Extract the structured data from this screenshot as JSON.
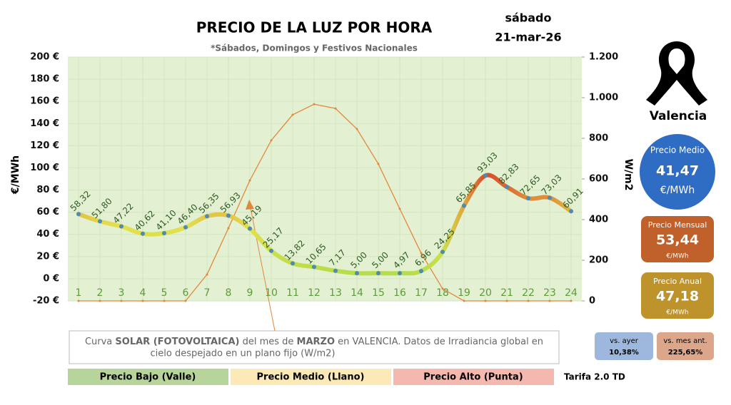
{
  "chart_data": {
    "type": "line",
    "title": "PRECIO DE LA LUZ POR HORA",
    "subtitle": "*Sábados, Domingos y Festivos Nacionales",
    "day": "sábado",
    "date": "21-mar-26",
    "ylabel": "€/MWh",
    "y2label": "W/m2",
    "categories": [
      "1",
      "2",
      "3",
      "4",
      "5",
      "6",
      "7",
      "8",
      "9",
      "10",
      "11",
      "12",
      "13",
      "14",
      "15",
      "16",
      "17",
      "18",
      "19",
      "20",
      "21",
      "22",
      "23",
      "24"
    ],
    "ylim": [
      -20,
      200
    ],
    "yticks": [
      {
        "value": -20,
        "label": "-20 €"
      },
      {
        "value": 0,
        "label": "0 €"
      },
      {
        "value": 20,
        "label": "20 €"
      },
      {
        "value": 40,
        "label": "40 €"
      },
      {
        "value": 60,
        "label": "60 €"
      },
      {
        "value": 80,
        "label": "80 €"
      },
      {
        "value": 100,
        "label": "100 €"
      },
      {
        "value": 120,
        "label": "120 €"
      },
      {
        "value": 140,
        "label": "140 €"
      },
      {
        "value": 160,
        "label": "160 €"
      },
      {
        "value": 180,
        "label": "180 €"
      },
      {
        "value": 200,
        "label": "200 €"
      }
    ],
    "y2lim": [
      0,
      1200
    ],
    "y2ticks": [
      0,
      200,
      400,
      600,
      800,
      {
        "value": 1000,
        "label": "1.000"
      },
      {
        "value": 1200,
        "label": "1.200"
      }
    ],
    "grid": true,
    "series": [
      {
        "color_scale": [
          "#b6de4a",
          "#e6e04c",
          "#d9482a"
        ],
        "values": [
          58.32,
          51.8,
          47.22,
          40.62,
          41.1,
          46.4,
          56.35,
          56.93,
          45.19,
          25.17,
          13.82,
          10.65,
          7.17,
          5.0,
          5.0,
          4.97,
          6.96,
          24.25,
          65.85,
          93.03,
          82.83,
          72.65,
          73.03,
          60.91
        ],
        "value_labels": [
          "58,32",
          "51,80",
          "47,22",
          "40,62",
          "41,10",
          "46,40",
          "56,35",
          "56,93",
          "45,19",
          "25,17",
          "13,82",
          "10,65",
          "7,17",
          "5,00",
          "5,00",
          "4,97",
          "6,96",
          "24,25",
          "65,85",
          "93,03",
          "82,83",
          "72,65",
          "73,03",
          "60,91"
        ]
      },
      {
        "axis": "y2",
        "color": "#e0893c",
        "values": [
          0,
          0,
          0,
          0,
          0,
          0,
          130,
          358,
          593,
          790,
          916,
          968,
          947,
          846,
          674,
          453,
          235,
          60,
          0,
          0,
          0,
          0,
          0,
          0
        ]
      }
    ],
    "note": {
      "line1": [
        {
          "text": "Curva ",
          "bold": false
        },
        {
          "text": "SOLAR (FOTOVOLTAICA)",
          "bold": true
        },
        {
          "text": " del mes de ",
          "bold": false
        },
        {
          "text": "MARZO",
          "bold": true
        },
        {
          "text": " en VALENCIA. Datos de Irradiancia global en",
          "bold": false
        }
      ],
      "line2": "cielo despejado en un plano fijo (W/m2)"
    },
    "legend": [
      {
        "name": "Precio Bajo (Valle)",
        "color": "#b7d59b"
      },
      {
        "name": "Precio Medio (Llano)",
        "color": "#fbe9b8"
      },
      {
        "name": "Precio Alto (Punta)",
        "color": "#f4b8ae"
      }
    ],
    "tariff": "Tarifa 2.0 TD"
  },
  "panel": {
    "city": "Valencia",
    "average": {
      "label": "Precio Medio",
      "value": "41,47",
      "unit": "€/MWh"
    },
    "monthly": {
      "label": "Precio Mensual",
      "value": "53,44",
      "unit": "€/MWh"
    },
    "annual": {
      "label": "Precio Anual",
      "value": "47,18",
      "unit": "€/MWh"
    },
    "vs_yesterday": {
      "label": "vs. ayer",
      "value": "10,38%"
    },
    "vs_last_month": {
      "label": "vs. mes ant.",
      "value": "225,65%"
    }
  }
}
